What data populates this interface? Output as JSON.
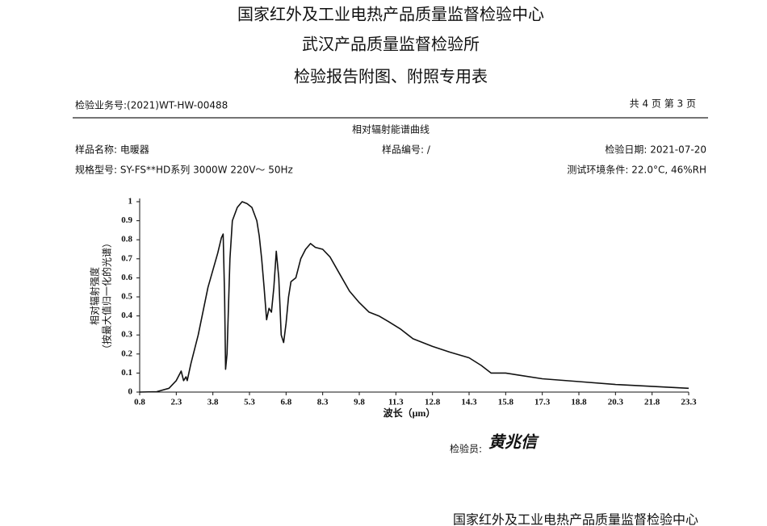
{
  "header": {
    "title": "国家红外及工业电热产品质量监督检验中心",
    "subtitle": "武汉产品质量监督检验所",
    "form_title": "检验报告附图、附照专用表",
    "business_no": "检验业务号:(2021)WT-HW-00488",
    "page_info": "共 4 页 第 3 页"
  },
  "info": {
    "sample_name": "样品名称: 电暖器",
    "sample_no": "样品编号: /",
    "test_date": "检验日期: 2021-07-20",
    "model": "规格型号: SY-FS**HD系列  3000W  220V～  50Hz",
    "environment": "测试环境条件: 22.0°C, 46%RH"
  },
  "chart_data": {
    "type": "line",
    "title": "相对辐射能谱曲线",
    "y_label": "相对辐射强度",
    "y_label_2": "（按最大值归一化的光谱）",
    "x_label": "波长（μm）",
    "color": "#111111",
    "x": [
      0.8,
      1.5,
      2.0,
      2.3,
      2.5,
      2.6,
      2.7,
      2.75,
      2.9,
      3.2,
      3.6,
      4.0,
      4.15,
      4.22,
      4.28,
      4.32,
      4.38,
      4.5,
      4.6,
      4.8,
      5.0,
      5.2,
      5.4,
      5.6,
      5.7,
      5.8,
      5.9,
      6.0,
      6.1,
      6.2,
      6.3,
      6.4,
      6.5,
      6.6,
      6.7,
      6.8,
      6.9,
      7.0,
      7.2,
      7.4,
      7.6,
      7.8,
      8.0,
      8.3,
      8.6,
      9.0,
      9.4,
      9.8,
      10.2,
      10.6,
      11.0,
      11.5,
      12.0,
      12.8,
      13.5,
      14.3,
      14.8,
      15.2,
      15.8,
      16.3,
      17.3,
      18.8,
      20.3,
      21.8,
      23.3
    ],
    "values": [
      0,
      0.002,
      0.02,
      0.06,
      0.11,
      0.06,
      0.08,
      0.06,
      0.15,
      0.3,
      0.55,
      0.73,
      0.81,
      0.83,
      0.5,
      0.12,
      0.2,
      0.7,
      0.9,
      0.97,
      1.0,
      0.99,
      0.97,
      0.9,
      0.82,
      0.7,
      0.55,
      0.38,
      0.44,
      0.42,
      0.55,
      0.74,
      0.6,
      0.3,
      0.26,
      0.36,
      0.5,
      0.58,
      0.6,
      0.7,
      0.75,
      0.78,
      0.76,
      0.75,
      0.71,
      0.62,
      0.53,
      0.47,
      0.42,
      0.4,
      0.37,
      0.33,
      0.28,
      0.24,
      0.21,
      0.18,
      0.14,
      0.1,
      0.1,
      0.09,
      0.07,
      0.055,
      0.04,
      0.03,
      0.02
    ],
    "xlim": [
      0.8,
      23.3
    ],
    "xticks": [
      0.8,
      2.3,
      3.8,
      5.3,
      6.8,
      8.3,
      9.8,
      11.3,
      12.8,
      14.3,
      15.8,
      17.3,
      18.8,
      20.3,
      21.8,
      23.3
    ],
    "ylim": [
      0,
      1
    ],
    "yticks": [
      0,
      0.1,
      0.2,
      0.3,
      0.4,
      0.5,
      0.6,
      0.7,
      0.8,
      0.9,
      1
    ]
  },
  "footer": {
    "inspector": "检验员:",
    "signature": "黄兆信",
    "bottom_title": "国家红外及工业电热产品质量监督检验中心"
  }
}
